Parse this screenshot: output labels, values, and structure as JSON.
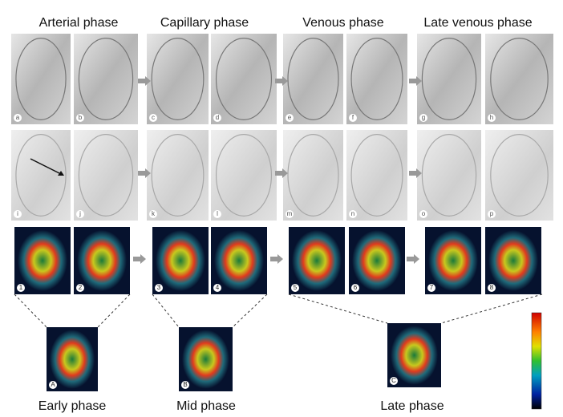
{
  "phases": [
    "Arterial phase",
    "Capillary phase",
    "Venous phase",
    "Late venous phase"
  ],
  "angiogram_panels": [
    "a",
    "b",
    "c",
    "d",
    "e",
    "f",
    "g",
    "h",
    "i",
    "j",
    "k",
    "l",
    "m",
    "n",
    "o",
    "p"
  ],
  "perfusion_panels": [
    "1",
    "2",
    "3",
    "4",
    "5",
    "6",
    "7",
    "8"
  ],
  "summary_panels": [
    {
      "label": "A",
      "title": "Early phase"
    },
    {
      "label": "B",
      "title": "Mid phase"
    },
    {
      "label": "C",
      "title": "Late phase"
    }
  ]
}
